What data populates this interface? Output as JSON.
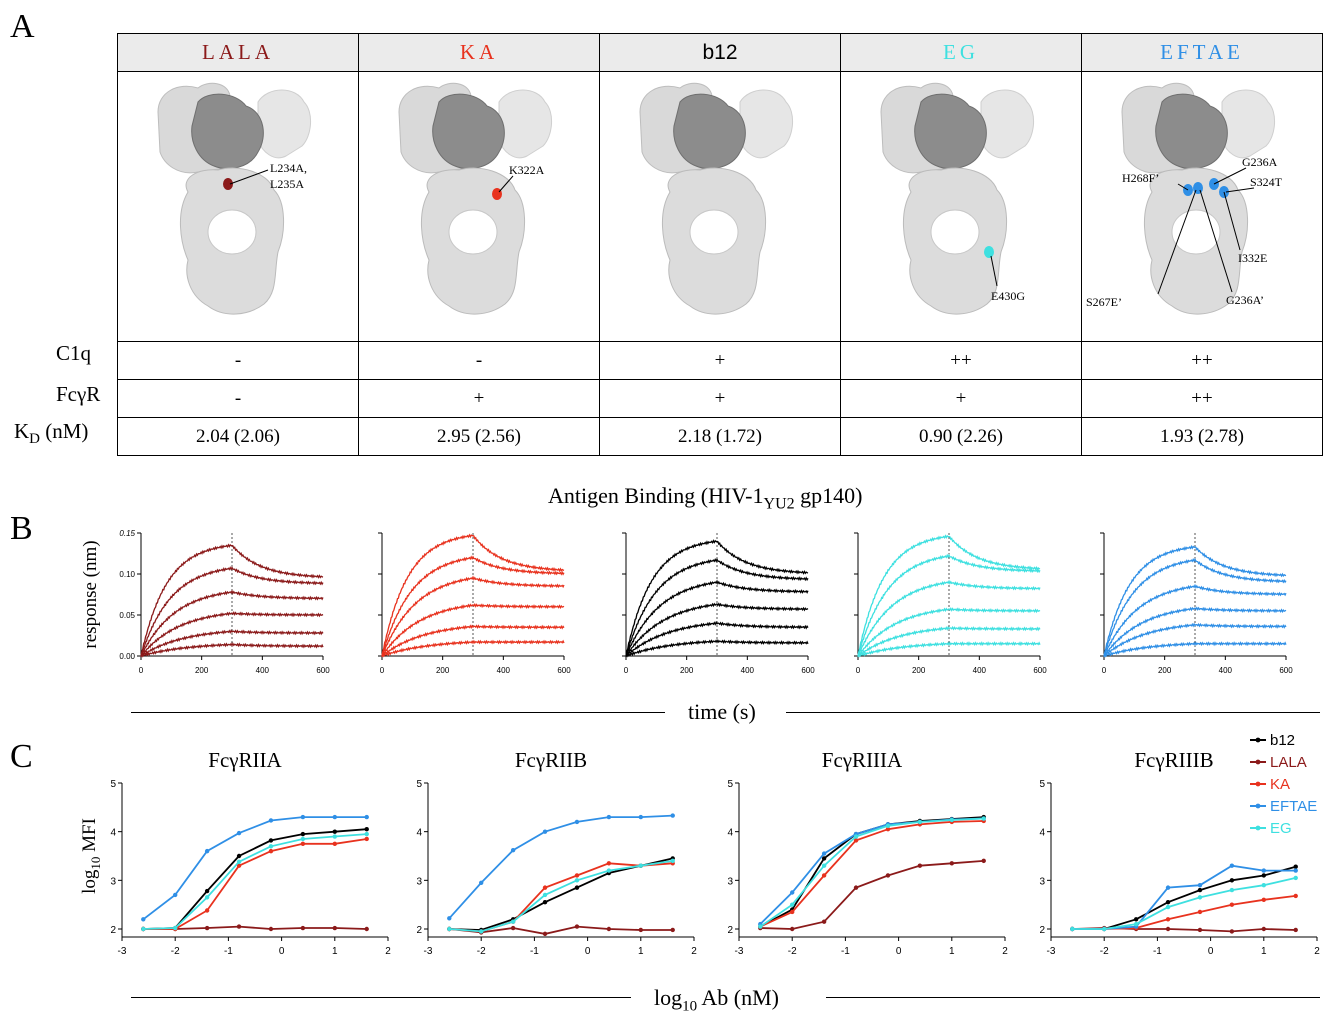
{
  "panel_labels": [
    "A",
    "B",
    "C"
  ],
  "panelA": {
    "variants": [
      {
        "name": "LALA",
        "color": "#8b1a1a",
        "mutations": [
          "L234A,",
          "L235A"
        ],
        "c1q": "-",
        "fcgr": "-",
        "kd": "2.04 (2.06)"
      },
      {
        "name": "KA",
        "color": "#e8321e",
        "mutations": [
          "K322A"
        ],
        "c1q": "-",
        "fcgr": "+",
        "kd": "2.95 (2.56)"
      },
      {
        "name": "b12",
        "color": "#000000",
        "mutations": [],
        "c1q": "+",
        "fcgr": "+",
        "kd": "2.18 (1.72)"
      },
      {
        "name": "EG",
        "color": "#3ee0e0",
        "mutations": [
          "E430G"
        ],
        "c1q": "++",
        "fcgr": "+",
        "kd": "0.90 (2.26)"
      },
      {
        "name": "EFTAE",
        "color": "#2f8fe6",
        "mutations": [
          "G236A",
          "S324T",
          "H268F’",
          "I332E",
          "S267E’",
          "G236A’"
        ],
        "c1q": "++",
        "fcgr": "++",
        "kd": "1.93 (2.78)"
      }
    ],
    "row_labels": {
      "c1q": "C1q",
      "fcgr": "FcγR",
      "kd_main": "K",
      "kd_sub": "D",
      "kd_unit": " (nM)"
    }
  },
  "panelB": {
    "title_pre": "Antigen Binding (HIV-1",
    "title_sub": "YU2",
    "title_post": " gp140)",
    "ylabel": "response (nm)",
    "xlabel": "time (s)",
    "yticks": [
      "0.00",
      "0.05",
      "0.10",
      "0.15"
    ],
    "xticks": [
      "0",
      "200",
      "400",
      "600"
    ]
  },
  "chart_data": [
    {
      "type": "line",
      "title": "",
      "xlabel": "time (s)",
      "ylabel": "response (nm)",
      "xlim": [
        0,
        600
      ],
      "ylim": [
        0,
        0.15
      ],
      "dissociation_start": 300,
      "series_color": "#8b1a1a",
      "series": [
        {
          "x": [
            0,
            300,
            600
          ],
          "values": [
            0,
            0.135,
            0.095
          ]
        },
        {
          "x": [
            0,
            300,
            600
          ],
          "values": [
            0,
            0.107,
            0.088
          ]
        },
        {
          "x": [
            0,
            300,
            600
          ],
          "values": [
            0,
            0.078,
            0.07
          ]
        },
        {
          "x": [
            0,
            300,
            600
          ],
          "values": [
            0,
            0.052,
            0.05
          ]
        },
        {
          "x": [
            0,
            300,
            600
          ],
          "values": [
            0,
            0.03,
            0.028
          ]
        },
        {
          "x": [
            0,
            300,
            600
          ],
          "values": [
            0,
            0.014,
            0.012
          ]
        }
      ]
    },
    {
      "type": "line",
      "title": "",
      "xlabel": "time (s)",
      "ylabel": "",
      "xlim": [
        0,
        600
      ],
      "ylim": [
        0,
        0.15
      ],
      "dissociation_start": 300,
      "series_color": "#e8321e",
      "series": [
        {
          "x": [
            0,
            300,
            600
          ],
          "values": [
            0,
            0.147,
            0.103
          ]
        },
        {
          "x": [
            0,
            300,
            600
          ],
          "values": [
            0,
            0.12,
            0.1
          ]
        },
        {
          "x": [
            0,
            300,
            600
          ],
          "values": [
            0,
            0.095,
            0.085
          ]
        },
        {
          "x": [
            0,
            300,
            600
          ],
          "values": [
            0,
            0.062,
            0.06
          ]
        },
        {
          "x": [
            0,
            300,
            600
          ],
          "values": [
            0,
            0.036,
            0.035
          ]
        },
        {
          "x": [
            0,
            300,
            600
          ],
          "values": [
            0,
            0.017,
            0.017
          ]
        }
      ]
    },
    {
      "type": "line",
      "title": "",
      "xlabel": "time (s)",
      "ylabel": "",
      "xlim": [
        0,
        600
      ],
      "ylim": [
        0,
        0.15
      ],
      "dissociation_start": 300,
      "series_color": "#000000",
      "series": [
        {
          "x": [
            0,
            300,
            600
          ],
          "values": [
            0,
            0.14,
            0.1
          ]
        },
        {
          "x": [
            0,
            300,
            600
          ],
          "values": [
            0,
            0.117,
            0.093
          ]
        },
        {
          "x": [
            0,
            300,
            600
          ],
          "values": [
            0,
            0.09,
            0.078
          ]
        },
        {
          "x": [
            0,
            300,
            600
          ],
          "values": [
            0,
            0.063,
            0.057
          ]
        },
        {
          "x": [
            0,
            300,
            600
          ],
          "values": [
            0,
            0.04,
            0.035
          ]
        },
        {
          "x": [
            0,
            300,
            600
          ],
          "values": [
            0,
            0.018,
            0.016
          ]
        }
      ]
    },
    {
      "type": "line",
      "title": "",
      "xlabel": "time (s)",
      "ylabel": "",
      "xlim": [
        0,
        600
      ],
      "ylim": [
        0,
        0.15
      ],
      "dissociation_start": 300,
      "series_color": "#3ee0e0",
      "series": [
        {
          "x": [
            0,
            300,
            600
          ],
          "values": [
            0,
            0.146,
            0.105
          ]
        },
        {
          "x": [
            0,
            300,
            600
          ],
          "values": [
            0,
            0.122,
            0.103
          ]
        },
        {
          "x": [
            0,
            300,
            600
          ],
          "values": [
            0,
            0.09,
            0.082
          ]
        },
        {
          "x": [
            0,
            300,
            600
          ],
          "values": [
            0,
            0.057,
            0.055
          ]
        },
        {
          "x": [
            0,
            300,
            600
          ],
          "values": [
            0,
            0.034,
            0.033
          ]
        },
        {
          "x": [
            0,
            300,
            600
          ],
          "values": [
            0,
            0.015,
            0.015
          ]
        }
      ]
    },
    {
      "type": "line",
      "title": "",
      "xlabel": "time (s)",
      "ylabel": "",
      "xlim": [
        0,
        600
      ],
      "ylim": [
        0,
        0.15
      ],
      "dissociation_start": 300,
      "series_color": "#2f8fe6",
      "series": [
        {
          "x": [
            0,
            300,
            600
          ],
          "values": [
            0,
            0.133,
            0.097
          ]
        },
        {
          "x": [
            0,
            300,
            600
          ],
          "values": [
            0,
            0.117,
            0.09
          ]
        },
        {
          "x": [
            0,
            300,
            600
          ],
          "values": [
            0,
            0.085,
            0.075
          ]
        },
        {
          "x": [
            0,
            300,
            600
          ],
          "values": [
            0,
            0.058,
            0.055
          ]
        },
        {
          "x": [
            0,
            300,
            600
          ],
          "values": [
            0,
            0.038,
            0.036
          ]
        },
        {
          "x": [
            0,
            300,
            600
          ],
          "values": [
            0,
            0.015,
            0.015
          ]
        }
      ]
    },
    {
      "type": "line",
      "title": "FcγRIIA",
      "xlabel": "log10 Ab (nM)",
      "ylabel": "log10 MFI",
      "xlim": [
        -3,
        2
      ],
      "ylim": [
        2,
        5
      ],
      "x": [
        -2.6,
        -2.0,
        -1.4,
        -0.8,
        -0.2,
        0.4,
        1.0,
        1.6
      ],
      "series": [
        {
          "name": "b12",
          "color": "#000000",
          "values": [
            2.0,
            2.02,
            2.78,
            3.5,
            3.82,
            3.95,
            4.0,
            4.05
          ]
        },
        {
          "name": "LALA",
          "color": "#8b1a1a",
          "values": [
            2.0,
            2.0,
            2.02,
            2.05,
            2.0,
            2.02,
            2.02,
            2.0
          ]
        },
        {
          "name": "KA",
          "color": "#e8321e",
          "values": [
            2.0,
            2.0,
            2.38,
            3.3,
            3.6,
            3.75,
            3.75,
            3.85
          ]
        },
        {
          "name": "EFTAE",
          "color": "#2f8fe6",
          "values": [
            2.2,
            2.7,
            3.6,
            3.97,
            4.23,
            4.3,
            4.3,
            4.3
          ]
        },
        {
          "name": "EG",
          "color": "#3ee0e0",
          "values": [
            2.0,
            2.02,
            2.65,
            3.38,
            3.7,
            3.85,
            3.9,
            3.95
          ]
        }
      ]
    },
    {
      "type": "line",
      "title": "FcγRIIB",
      "xlabel": "log10 Ab (nM)",
      "ylabel": "log10 MFI",
      "xlim": [
        -3,
        2
      ],
      "ylim": [
        2,
        5
      ],
      "x": [
        -2.6,
        -2.0,
        -1.4,
        -0.8,
        -0.2,
        0.4,
        1.0,
        1.6
      ],
      "series": [
        {
          "name": "b12",
          "color": "#000000",
          "values": [
            2.0,
            1.98,
            2.2,
            2.55,
            2.85,
            3.15,
            3.3,
            3.45
          ]
        },
        {
          "name": "LALA",
          "color": "#8b1a1a",
          "values": [
            2.0,
            1.93,
            2.02,
            1.9,
            2.05,
            2.0,
            1.98,
            1.98
          ]
        },
        {
          "name": "KA",
          "color": "#e8321e",
          "values": [
            2.0,
            1.95,
            2.15,
            2.85,
            3.1,
            3.35,
            3.3,
            3.35
          ]
        },
        {
          "name": "EFTAE",
          "color": "#2f8fe6",
          "values": [
            2.22,
            2.95,
            3.62,
            4.0,
            4.2,
            4.3,
            4.3,
            4.33
          ]
        },
        {
          "name": "EG",
          "color": "#3ee0e0",
          "values": [
            2.0,
            1.95,
            2.15,
            2.7,
            3.0,
            3.2,
            3.3,
            3.4
          ]
        }
      ]
    },
    {
      "type": "line",
      "title": "FcγRIIIA",
      "xlabel": "log10 Ab (nM)",
      "ylabel": "log10 MFI",
      "xlim": [
        -3,
        2
      ],
      "ylim": [
        2,
        5
      ],
      "x": [
        -2.6,
        -2.0,
        -1.4,
        -0.8,
        -0.2,
        0.4,
        1.0,
        1.6
      ],
      "series": [
        {
          "name": "b12",
          "color": "#000000",
          "values": [
            2.05,
            2.4,
            3.45,
            3.95,
            4.15,
            4.22,
            4.26,
            4.3
          ]
        },
        {
          "name": "LALA",
          "color": "#8b1a1a",
          "values": [
            2.02,
            2.0,
            2.15,
            2.85,
            3.1,
            3.3,
            3.35,
            3.4
          ]
        },
        {
          "name": "KA",
          "color": "#e8321e",
          "values": [
            2.05,
            2.35,
            3.1,
            3.82,
            4.05,
            4.15,
            4.2,
            4.22
          ]
        },
        {
          "name": "EFTAE",
          "color": "#2f8fe6",
          "values": [
            2.1,
            2.75,
            3.55,
            3.95,
            4.15,
            4.2,
            4.25,
            4.27
          ]
        },
        {
          "name": "EG",
          "color": "#3ee0e0",
          "values": [
            2.05,
            2.5,
            3.3,
            3.9,
            4.12,
            4.2,
            4.24,
            4.27
          ]
        }
      ]
    },
    {
      "type": "line",
      "title": "FcγRIIIB",
      "xlabel": "log10 Ab (nM)",
      "ylabel": "log10 MFI",
      "xlim": [
        -3,
        2
      ],
      "ylim": [
        2,
        5
      ],
      "x": [
        -2.6,
        -2.0,
        -1.4,
        -0.8,
        -0.2,
        0.4,
        1.0,
        1.6
      ],
      "series": [
        {
          "name": "b12",
          "color": "#000000",
          "values": [
            2.0,
            2.0,
            2.2,
            2.55,
            2.8,
            3.0,
            3.1,
            3.28
          ]
        },
        {
          "name": "LALA",
          "color": "#8b1a1a",
          "values": [
            2.0,
            2.02,
            2.0,
            2.0,
            1.98,
            1.95,
            2.0,
            1.98
          ]
        },
        {
          "name": "KA",
          "color": "#e8321e",
          "values": [
            2.0,
            2.0,
            2.02,
            2.2,
            2.35,
            2.5,
            2.6,
            2.68
          ]
        },
        {
          "name": "EFTAE",
          "color": "#2f8fe6",
          "values": [
            2.0,
            2.0,
            2.05,
            2.85,
            2.9,
            3.3,
            3.2,
            3.2
          ]
        },
        {
          "name": "EG",
          "color": "#3ee0e0",
          "values": [
            2.0,
            2.0,
            2.1,
            2.45,
            2.65,
            2.8,
            2.9,
            3.05
          ]
        }
      ]
    }
  ],
  "panelC": {
    "ylabel_main": "log",
    "ylabel_sub": "10",
    "ylabel_post": " MFI",
    "xlabel_main": "log",
    "xlabel_sub": "10",
    "xlabel_post": " Ab (nM)",
    "yticks": [
      "2",
      "3",
      "4",
      "5"
    ],
    "xticks": [
      "-3",
      "-2",
      "-1",
      "0",
      "1",
      "2"
    ],
    "legend": [
      "b12",
      "LALA",
      "KA",
      "EFTAE",
      "EG"
    ]
  }
}
